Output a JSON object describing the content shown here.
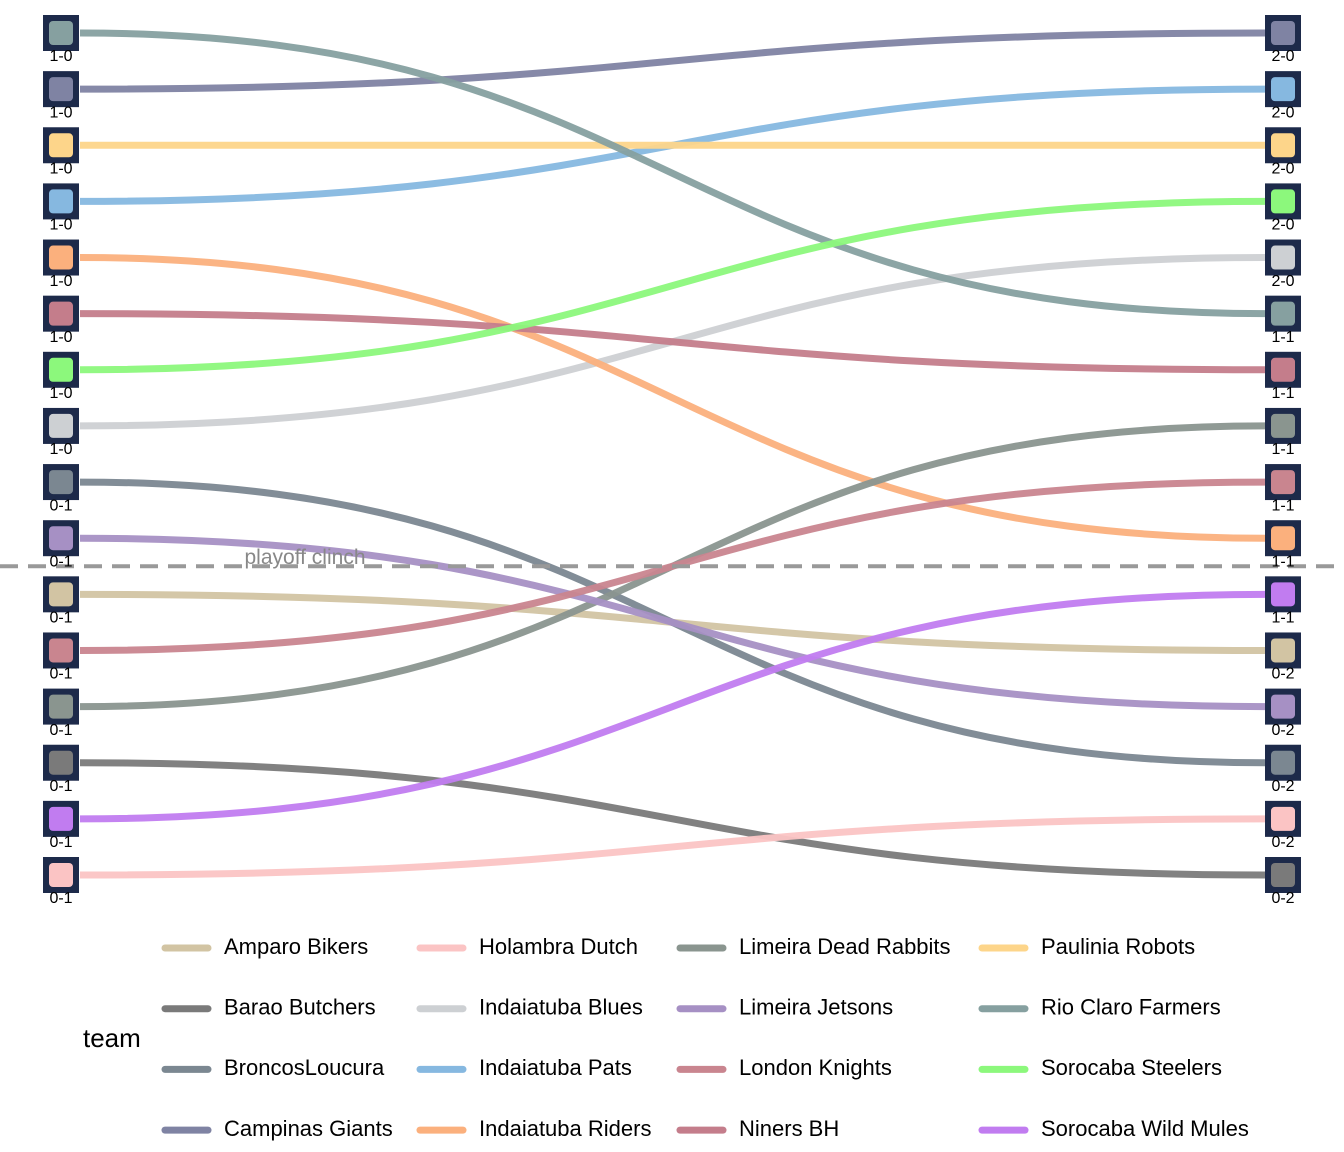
{
  "chart_data": {
    "type": "bump",
    "legend_title": "team",
    "categories": [
      null,
      null
    ],
    "ylim": [
      1,
      16
    ],
    "y_reversed": true,
    "reference_line": {
      "value": 10.5,
      "label": "playoff clinch"
    },
    "series": [
      {
        "name": "Amparo Bikers",
        "color": "#d2c4a3",
        "values": [
          11,
          12
        ],
        "records": [
          "0-1",
          "0-2"
        ]
      },
      {
        "name": "Barao Butchers",
        "color": "#7a7a7a",
        "values": [
          14,
          16
        ],
        "records": [
          "0-1",
          "0-2"
        ]
      },
      {
        "name": "BroncosLoucura",
        "color": "#7b8791",
        "values": [
          9,
          14
        ],
        "records": [
          "0-1",
          "0-2"
        ]
      },
      {
        "name": "Campinas Giants",
        "color": "#7f83a3",
        "values": [
          2,
          1
        ],
        "records": [
          "1-0",
          "2-0"
        ]
      },
      {
        "name": "Holambra Dutch",
        "color": "#fbc4c4",
        "values": [
          16,
          15
        ],
        "records": [
          "0-1",
          "0-2"
        ]
      },
      {
        "name": "Indaiatuba Blues",
        "color": "#cdd0d3",
        "values": [
          8,
          5
        ],
        "records": [
          "1-0",
          "2-0"
        ]
      },
      {
        "name": "Indaiatuba Pats",
        "color": "#86b8e0",
        "values": [
          4,
          2
        ],
        "records": [
          "1-0",
          "2-0"
        ]
      },
      {
        "name": "Indaiatuba Riders",
        "color": "#fbb07d",
        "values": [
          5,
          10
        ],
        "records": [
          "1-0",
          "1-1"
        ]
      },
      {
        "name": "Limeira Dead Rabbits",
        "color": "#8a958f",
        "values": [
          13,
          8
        ],
        "records": [
          "0-1",
          "1-1"
        ]
      },
      {
        "name": "Limeira Jetsons",
        "color": "#a690c4",
        "values": [
          10,
          13
        ],
        "records": [
          "0-1",
          "0-2"
        ]
      },
      {
        "name": "London Knights",
        "color": "#c9858f",
        "values": [
          12,
          9
        ],
        "records": [
          "0-1",
          "1-1"
        ]
      },
      {
        "name": "Niners BH",
        "color": "#c47d8b",
        "values": [
          6,
          7
        ],
        "records": [
          "1-0",
          "1-1"
        ]
      },
      {
        "name": "Paulinia Robots",
        "color": "#fdd58a",
        "values": [
          3,
          3
        ],
        "records": [
          "1-0",
          "2-0"
        ]
      },
      {
        "name": "Rio Claro Farmers",
        "color": "#86a0a0",
        "values": [
          1,
          6
        ],
        "records": [
          "1-0",
          "1-1"
        ]
      },
      {
        "name": "Sorocaba Steelers",
        "color": "#8cf87c",
        "values": [
          7,
          4
        ],
        "records": [
          "1-0",
          "2-0"
        ]
      },
      {
        "name": "Sorocaba Wild Mules",
        "color": "#c17cf0",
        "values": [
          15,
          11
        ],
        "records": [
          "0-1",
          "1-1"
        ]
      }
    ]
  }
}
